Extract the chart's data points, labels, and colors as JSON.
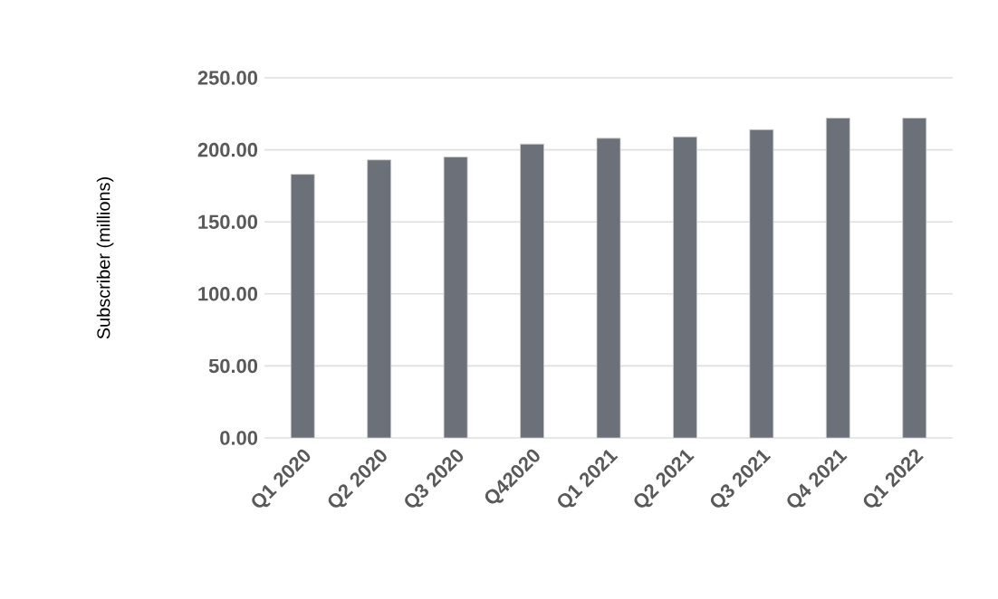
{
  "chart_data": {
    "type": "bar",
    "ylabel": "Subscriber (millions)",
    "categories": [
      "Q1 2020",
      "Q2 2020",
      "Q3 2020",
      "Q42020",
      "Q1 2021",
      "Q2 2021",
      "Q3 2021",
      "Q4 2021",
      "Q1 2022"
    ],
    "values": [
      183,
      193,
      195,
      204,
      208,
      209,
      214,
      222,
      222
    ],
    "color": "#6b7079",
    "ylim": [
      0,
      250
    ],
    "yticks": [
      {
        "value": 0,
        "label": "0.00"
      },
      {
        "value": 50,
        "label": "50.00"
      },
      {
        "value": 100,
        "label": "100.00"
      },
      {
        "value": 150,
        "label": "150.00"
      },
      {
        "value": 200,
        "label": "200.00"
      },
      {
        "value": 250,
        "label": "250.00"
      }
    ],
    "grid": "y"
  }
}
